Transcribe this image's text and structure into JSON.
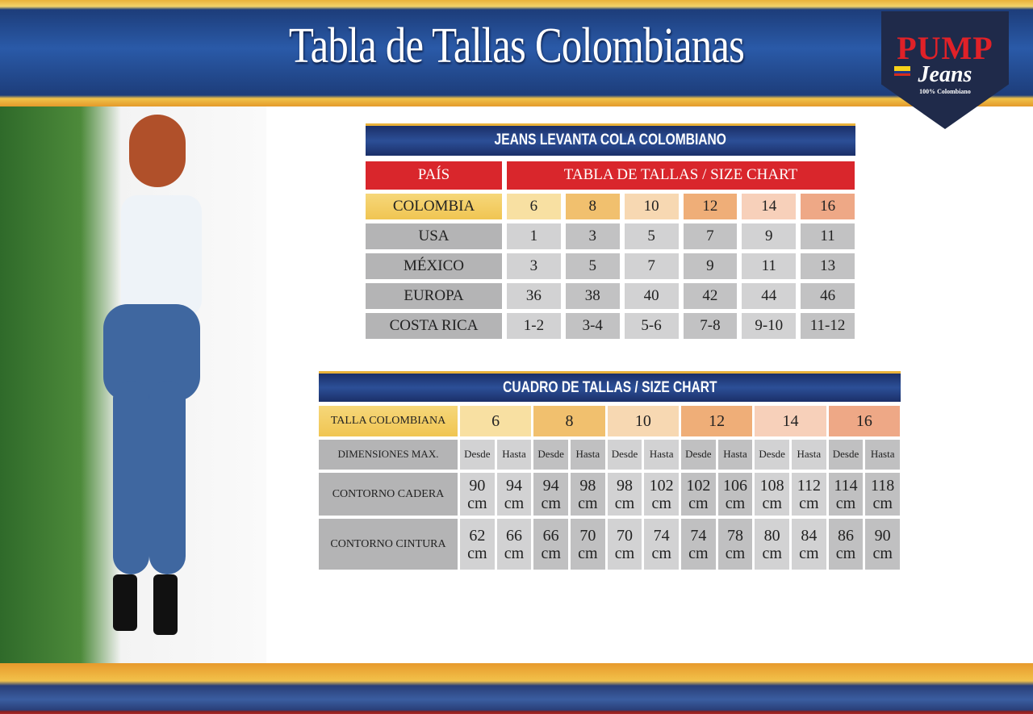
{
  "header": {
    "title": "Tabla de Tallas Colombianas"
  },
  "logo": {
    "brand": "PUMP",
    "script": "Jeans",
    "tagline": "100% Colombiano"
  },
  "table1": {
    "title": "JEANS LEVANTA COLA COLOMBIANO",
    "country_header": "PAÍS",
    "sizes_header": "TABLA DE TALLAS / SIZE CHART",
    "rows": [
      {
        "country": "COLOMBIA",
        "values": [
          "6",
          "8",
          "10",
          "12",
          "14",
          "16"
        ]
      },
      {
        "country": "USA",
        "values": [
          "1",
          "3",
          "5",
          "7",
          "9",
          "11"
        ]
      },
      {
        "country": "MÉXICO",
        "values": [
          "3",
          "5",
          "7",
          "9",
          "11",
          "13"
        ]
      },
      {
        "country": "EUROPA",
        "values": [
          "36",
          "38",
          "40",
          "42",
          "44",
          "46"
        ]
      },
      {
        "country": "COSTA RICA",
        "values": [
          "1-2",
          "3-4",
          "5-6",
          "7-8",
          "9-10",
          "11-12"
        ]
      }
    ]
  },
  "table2": {
    "title": "CUADRO DE TALLAS / SIZE CHART",
    "size_label": "TALLA COLOMBIANA",
    "sizes": [
      "6",
      "8",
      "10",
      "12",
      "14",
      "16"
    ],
    "dims_label": "DIMENSIONES MAX.",
    "from": "Desde",
    "to": "Hasta",
    "rows": [
      {
        "label": "CONTORNO CADERA",
        "values": [
          "90 cm",
          "94 cm",
          "94 cm",
          "98 cm",
          "98 cm",
          "102 cm",
          "102 cm",
          "106 cm",
          "108 cm",
          "112 cm",
          "114 cm",
          "118 cm"
        ]
      },
      {
        "label": "CONTORNO CINTURA",
        "values": [
          "62 cm",
          "66 cm",
          "66 cm",
          "70 cm",
          "70 cm",
          "74 cm",
          "74 cm",
          "78 cm",
          "80 cm",
          "84 cm",
          "86 cm",
          "90 cm"
        ]
      }
    ]
  },
  "colors": {
    "sizes": [
      "#f8e0a2",
      "#f1c06e",
      "#f7d8b2",
      "#efae78",
      "#f7d0ba",
      "#eea886"
    ],
    "accent_red": "#d9262c",
    "navy": "#1f3a7a"
  }
}
